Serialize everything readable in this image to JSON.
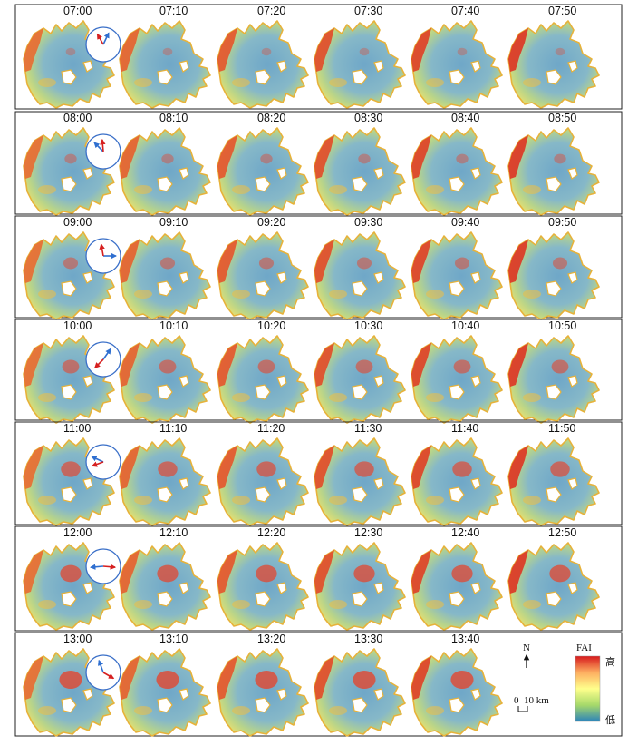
{
  "rows": [
    {
      "wind": {
        "blue_deg": 25,
        "red_deg": 330
      },
      "times": [
        "07:00",
        "07:10",
        "07:20",
        "07:30",
        "07:40",
        "07:50"
      ],
      "intensity": 0.15
    },
    {
      "wind": {
        "blue_deg": 315,
        "red_deg": 355
      },
      "times": [
        "08:00",
        "08:10",
        "08:20",
        "08:30",
        "08:40",
        "08:50"
      ],
      "intensity": 0.3
    },
    {
      "wind": {
        "blue_deg": 90,
        "red_deg": 350
      },
      "times": [
        "09:00",
        "09:10",
        "09:20",
        "09:30",
        "09:40",
        "09:50"
      ],
      "intensity": 0.45
    },
    {
      "wind": {
        "blue_deg": 35,
        "red_deg": 225
      },
      "times": [
        "10:00",
        "10:10",
        "10:20",
        "10:30",
        "10:40",
        "10:50"
      ],
      "intensity": 0.6
    },
    {
      "wind": {
        "blue_deg": 295,
        "red_deg": 250
      },
      "times": [
        "11:00",
        "11:10",
        "11:20",
        "11:30",
        "11:40",
        "11:50"
      ],
      "intensity": 0.75
    },
    {
      "wind": {
        "blue_deg": 265,
        "red_deg": 95
      },
      "times": [
        "12:00",
        "12:10",
        "12:20",
        "12:30",
        "12:40",
        "12:50"
      ],
      "intensity": 0.85
    },
    {
      "wind": {
        "blue_deg": 340,
        "red_deg": 120
      },
      "times": [
        "13:00",
        "13:10",
        "13:20",
        "13:30",
        "13:40"
      ],
      "intensity": 0.95
    }
  ],
  "legend": {
    "north": "N",
    "title": "FAI",
    "high": "高",
    "low": "低",
    "scale_start": "0",
    "scale_label": "10 km",
    "colors": [
      "#d7191c",
      "#fdae61",
      "#ffff8c",
      "#a6d96a",
      "#2b83ba"
    ]
  }
}
